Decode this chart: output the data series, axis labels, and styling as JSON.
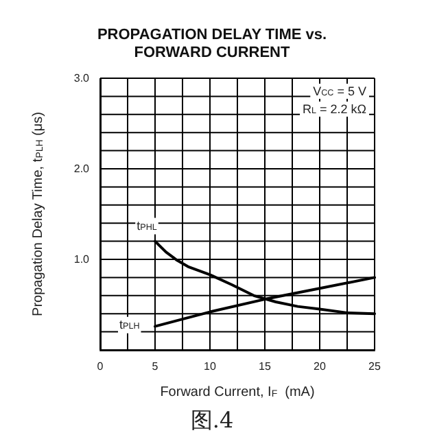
{
  "chart_data": {
    "type": "line",
    "title": "PROPAGATION DELAY TIME vs.\nFORWARD CURRENT",
    "xlabel": "Forward Current, I$_{F}$  (mA)",
    "ylabel": "Propagation Delay Time, t$_{PLH}$ (μs)",
    "annotations": [
      "V$_{CC}$ = 5 V",
      "R$_{L}$ = 2.2 kΩ",
      "图.4"
    ],
    "series": [
      {
        "name": "t$_{PHL}$",
        "color": "#000000",
        "x": [
          5,
          6,
          7,
          8,
          10,
          12,
          14,
          16,
          18,
          20,
          22.5,
          25
        ],
        "values": [
          1.2,
          1.08,
          0.99,
          0.92,
          0.83,
          0.72,
          0.6,
          0.53,
          0.48,
          0.45,
          0.41,
          0.4
        ]
      },
      {
        "name": "t$_{PLH}$",
        "color": "#000000",
        "x": [
          5,
          10,
          15,
          20,
          25
        ],
        "values": [
          0.26,
          0.42,
          0.56,
          0.68,
          0.8
        ]
      }
    ],
    "xlim": [
      0,
      25
    ],
    "ylim": [
      0,
      3
    ],
    "xticks": [
      0,
      {
        "value": 2.5,
        "label": null
      },
      5,
      {
        "value": 7.5,
        "label": null
      },
      10,
      {
        "value": 12.5,
        "label": null
      },
      15,
      {
        "value": 17.5,
        "label": null
      },
      20,
      {
        "value": 22.5,
        "label": null
      },
      25
    ],
    "yticks": [
      {
        "value": 0,
        "label": null
      },
      {
        "value": 0.2,
        "label": null
      },
      {
        "value": 0.4,
        "label": null
      },
      {
        "value": 0.6,
        "label": null
      },
      {
        "value": 0.8,
        "label": null
      },
      {
        "value": 1,
        "label": "1.0"
      },
      {
        "value": 1.2,
        "label": null
      },
      {
        "value": 1.4,
        "label": null
      },
      {
        "value": 1.6,
        "label": null
      },
      {
        "value": 1.8,
        "label": null
      },
      {
        "value": 2,
        "label": "2.0"
      },
      {
        "value": 2.2,
        "label": null
      },
      {
        "value": 2.4,
        "label": null
      },
      {
        "value": 2.6,
        "label": null
      },
      {
        "value": 2.8,
        "label": null
      },
      {
        "value": 3,
        "label": "3.0"
      }
    ],
    "grid": true,
    "marker": "none",
    "line_style": "solid"
  }
}
